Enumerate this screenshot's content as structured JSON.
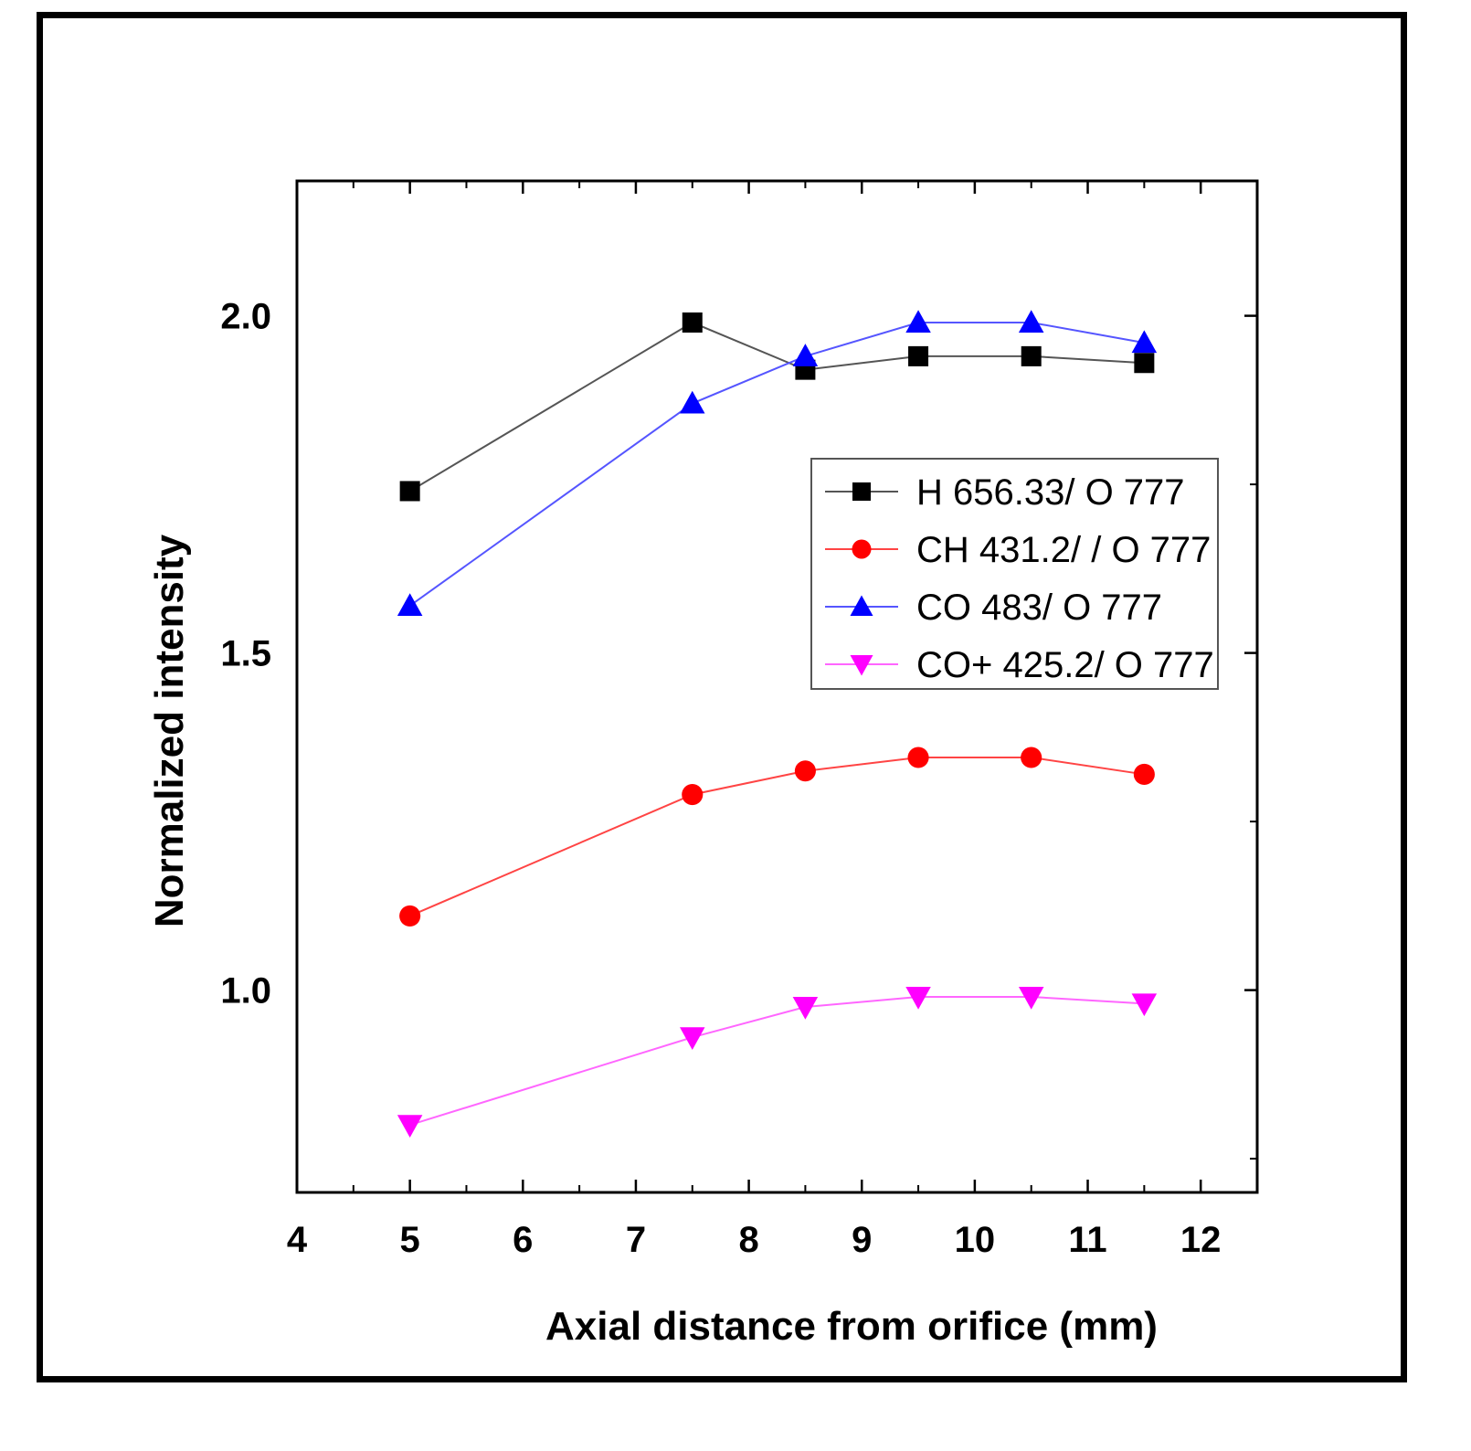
{
  "chart_data": {
    "type": "line",
    "title": "",
    "xlabel": "Axial distance from orifice (mm)",
    "ylabel": "Normalized intensity",
    "xlim": [
      4,
      12.5
    ],
    "ylim": [
      0.7,
      2.2
    ],
    "xticks": [
      4,
      5,
      6,
      7,
      8,
      9,
      10,
      11,
      12
    ],
    "yticks": [
      1.0,
      1.5,
      2.0
    ],
    "ytick_labels": [
      "1.0",
      "1.5",
      "2.0"
    ],
    "x": [
      5,
      7.5,
      8.5,
      9.5,
      10.5,
      11.5
    ],
    "legend_position": "center-right",
    "grid": false,
    "series": [
      {
        "name": "H 656.33/ O 777",
        "marker": "square",
        "color": "#000000",
        "line_color": "#555555",
        "values": [
          1.74,
          1.99,
          1.92,
          1.94,
          1.94,
          1.93
        ]
      },
      {
        "name": "CH 431.2/ / O 777",
        "marker": "circle",
        "color": "#ff0000",
        "line_color": "#ff4444",
        "values": [
          1.11,
          1.29,
          1.325,
          1.345,
          1.345,
          1.32
        ]
      },
      {
        "name": "CO 483/ O 777",
        "marker": "triangle-up",
        "color": "#0000ff",
        "line_color": "#5555ff",
        "values": [
          1.57,
          1.87,
          1.94,
          1.99,
          1.99,
          1.96
        ]
      },
      {
        "name": "CO+ 425.2/ O 777",
        "marker": "triangle-down",
        "color": "#ff00ff",
        "line_color": "#ff66ff",
        "values": [
          0.8,
          0.93,
          0.975,
          0.99,
          0.99,
          0.98
        ]
      }
    ]
  }
}
